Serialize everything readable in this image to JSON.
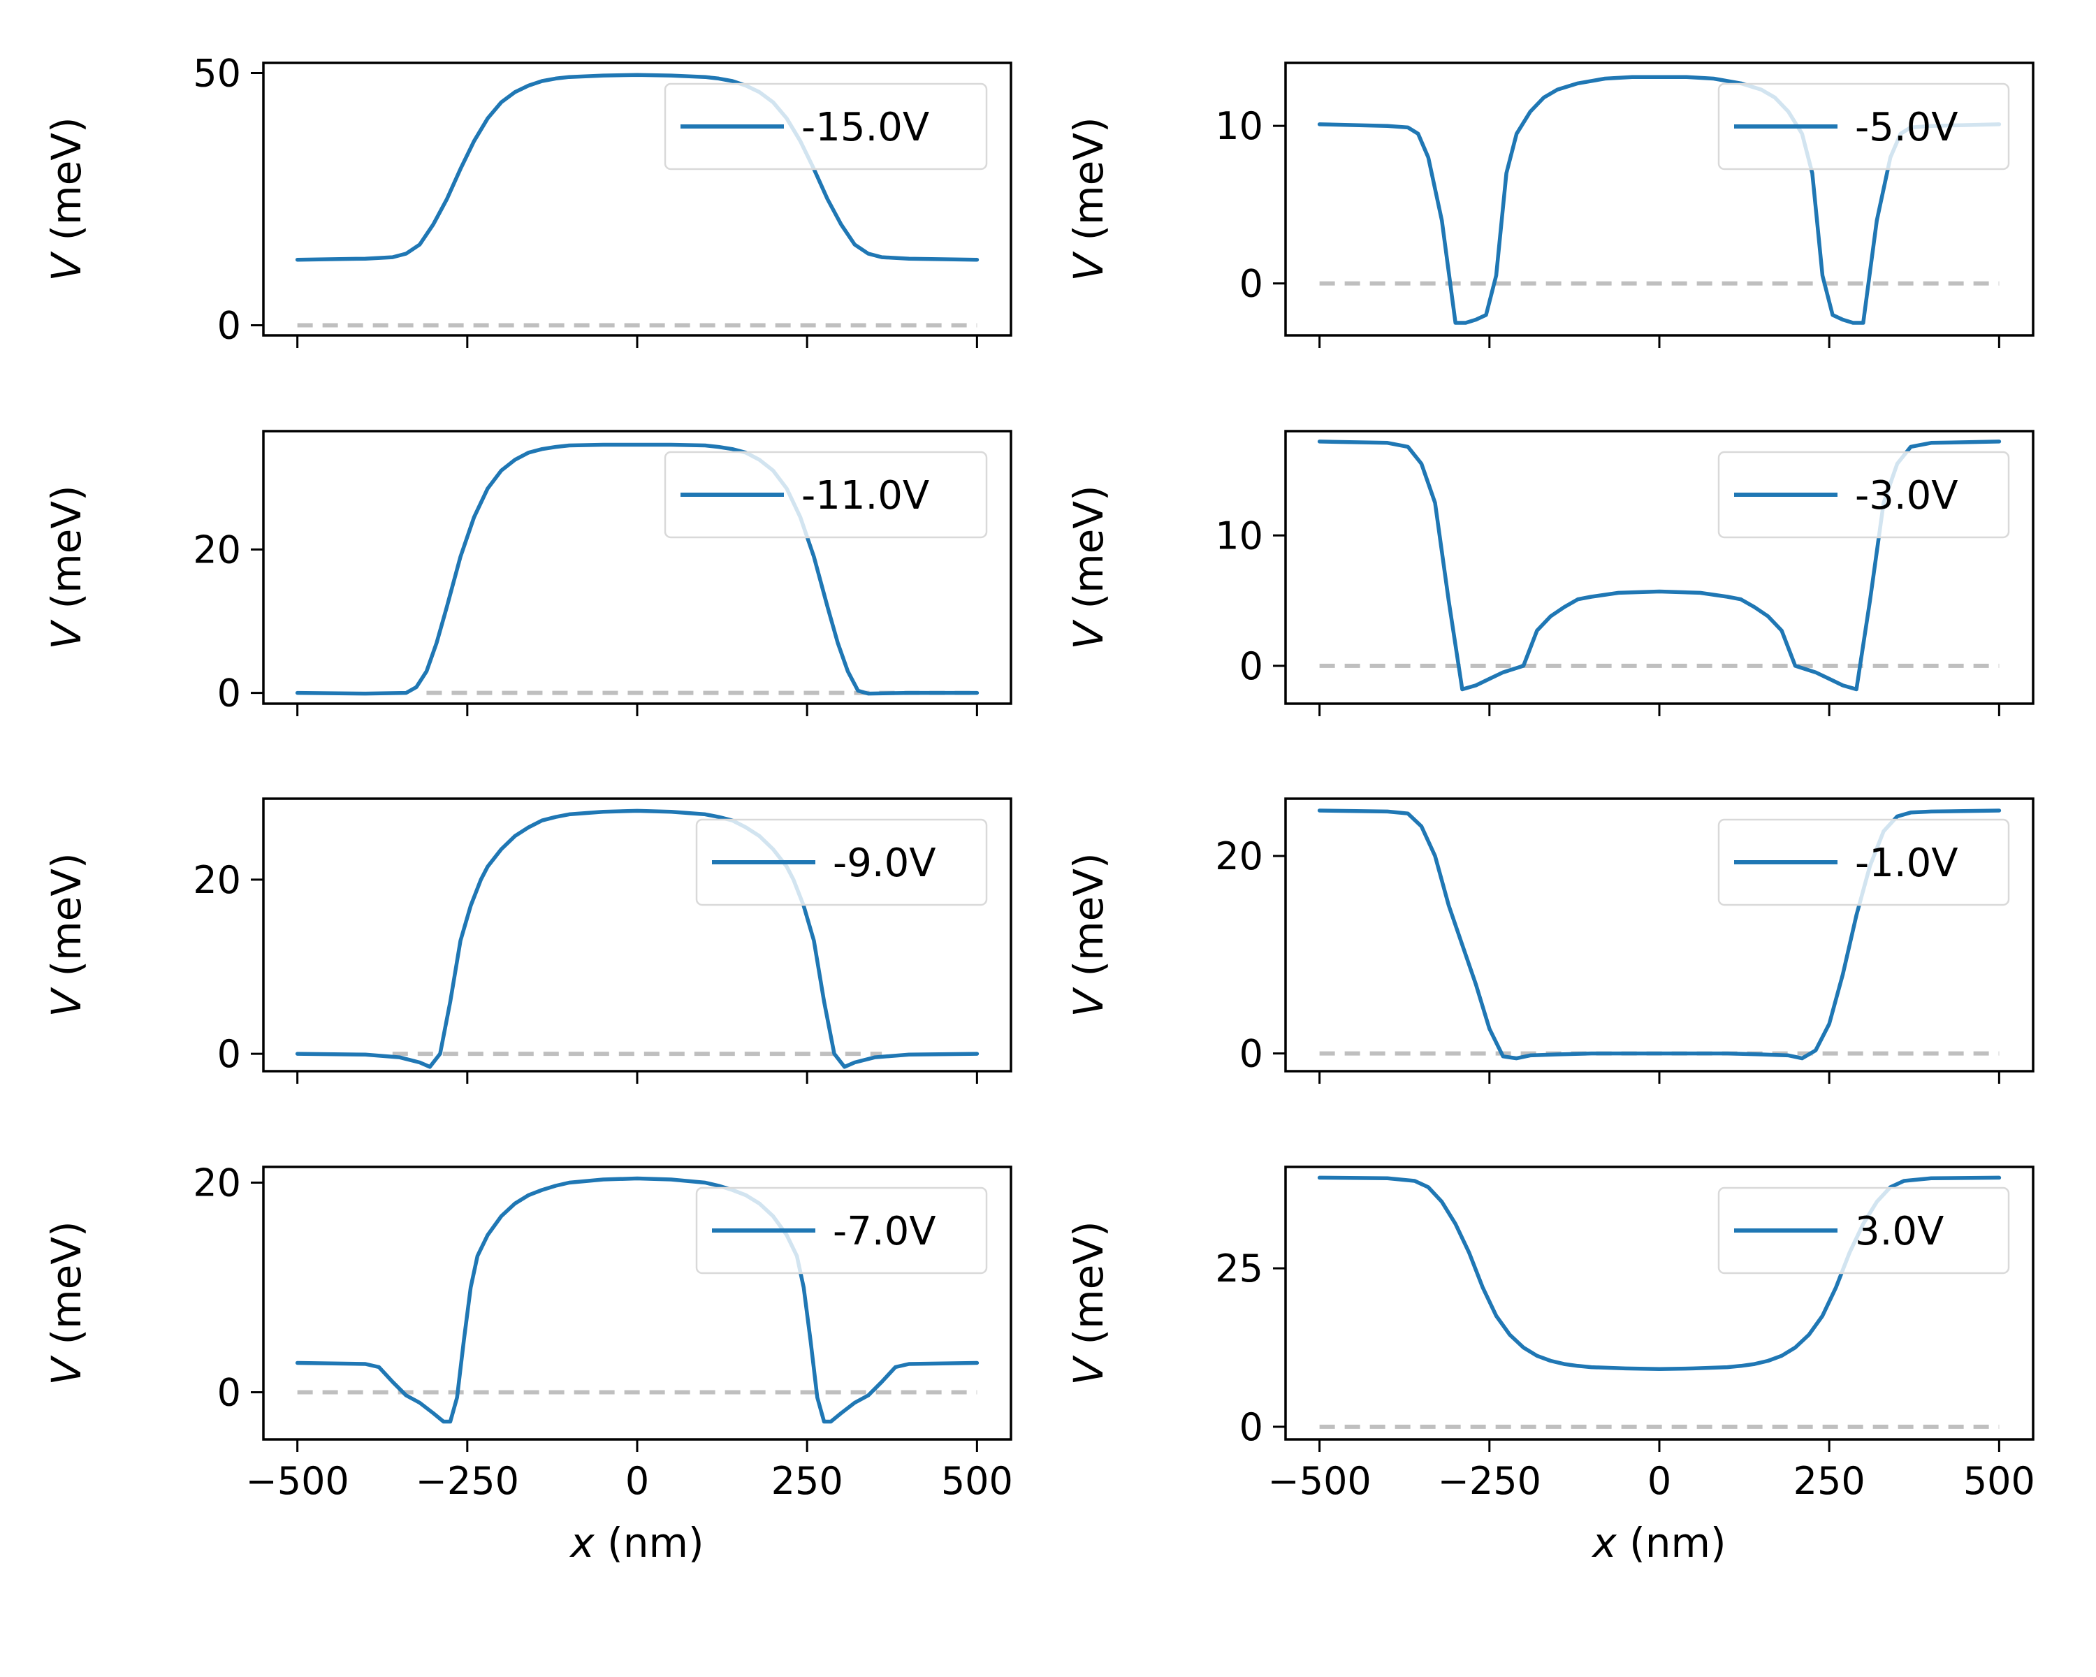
{
  "colors": {
    "series": "#1f77b4",
    "zero_line": "#bfbfbf",
    "axes": "#000000",
    "legend_border": "#d9d9d9"
  },
  "chart_data": [
    {
      "type": "line",
      "legend": "-15.0V",
      "legend_loc": "upper right",
      "ylabel_var": "V",
      "ylabel_unit": "(meV)",
      "xlabel_var": "x",
      "xlabel_unit": "(nm)",
      "xlim": [
        -550,
        550
      ],
      "ylim": [
        -2,
        52
      ],
      "xticks": [
        -500,
        -250,
        0,
        250,
        500
      ],
      "xtick_labels": [
        "−500",
        "−250",
        "0",
        "250",
        "500"
      ],
      "yticks": [
        0,
        50
      ],
      "ytick_labels": [
        "0",
        "50"
      ],
      "show_xtick_labels": false,
      "show_xlabel": false,
      "zero_line": [
        -500,
        500
      ],
      "x": [
        -500,
        -400,
        -360,
        -340,
        -320,
        -300,
        -280,
        -260,
        -240,
        -220,
        -200,
        -180,
        -160,
        -140,
        -120,
        -100,
        -50,
        0,
        50,
        100,
        120,
        140,
        160,
        180,
        200,
        220,
        240,
        260,
        280,
        300,
        320,
        340,
        360,
        400,
        500
      ],
      "y": [
        13,
        13.2,
        13.5,
        14.2,
        16,
        20,
        25,
        31,
        36.5,
        41,
        44.2,
        46.2,
        47.5,
        48.4,
        48.9,
        49.2,
        49.5,
        49.6,
        49.5,
        49.2,
        48.9,
        48.4,
        47.5,
        46.2,
        44.2,
        41,
        36.5,
        31,
        25,
        20,
        16,
        14.2,
        13.5,
        13.2,
        13
      ]
    },
    {
      "type": "line",
      "legend": "-5.0V",
      "legend_loc": "upper right",
      "ylabel_var": "V",
      "ylabel_unit": "(meV)",
      "xlabel_var": "x",
      "xlabel_unit": "(nm)",
      "xlim": [
        -550,
        550
      ],
      "ylim": [
        -3.3,
        14
      ],
      "xticks": [
        -500,
        -250,
        0,
        250,
        500
      ],
      "xtick_labels": [
        "−500",
        "−250",
        "0",
        "250",
        "500"
      ],
      "yticks": [
        0,
        10
      ],
      "ytick_labels": [
        "0",
        "10"
      ],
      "show_xtick_labels": false,
      "show_xlabel": false,
      "zero_line": [
        -500,
        500
      ],
      "x": [
        -500,
        -400,
        -370,
        -355,
        -340,
        -320,
        -300,
        -285,
        -270,
        -255,
        -240,
        -225,
        -210,
        -190,
        -170,
        -150,
        -120,
        -80,
        -40,
        0,
        40,
        80,
        120,
        150,
        170,
        190,
        210,
        225,
        240,
        255,
        270,
        285,
        300,
        320,
        340,
        355,
        370,
        400,
        500
      ],
      "y": [
        10.1,
        10,
        9.9,
        9.5,
        8,
        4,
        -2.5,
        -2.5,
        -2.3,
        -2,
        0.5,
        7,
        9.5,
        10.9,
        11.8,
        12.3,
        12.7,
        13,
        13.1,
        13.1,
        13.1,
        13,
        12.7,
        12.3,
        11.8,
        10.9,
        9.5,
        7,
        0.5,
        -2,
        -2.3,
        -2.5,
        -2.5,
        4,
        8,
        9.5,
        9.9,
        10,
        10.1
      ]
    },
    {
      "type": "line",
      "legend": "-11.0V",
      "legend_loc": "upper right",
      "ylabel_var": "V",
      "ylabel_unit": "(meV)",
      "xlabel_var": "x",
      "xlabel_unit": "(nm)",
      "xlim": [
        -550,
        550
      ],
      "ylim": [
        -1.5,
        36.5
      ],
      "xticks": [
        -500,
        -250,
        0,
        250,
        500
      ],
      "xtick_labels": [
        "−500",
        "−250",
        "0",
        "250",
        "500"
      ],
      "yticks": [
        0,
        20
      ],
      "ytick_labels": [
        "0",
        "20"
      ],
      "show_xtick_labels": false,
      "show_xlabel": false,
      "zero_line": [
        -310,
        500
      ],
      "x": [
        -500,
        -400,
        -340,
        -325,
        -310,
        -295,
        -280,
        -260,
        -240,
        -220,
        -200,
        -180,
        -160,
        -140,
        -120,
        -100,
        -50,
        0,
        50,
        100,
        120,
        140,
        160,
        180,
        200,
        220,
        240,
        260,
        280,
        295,
        310,
        325,
        340,
        400,
        500
      ],
      "y": [
        0,
        -0.1,
        0,
        0.8,
        3,
        7,
        12,
        19,
        24.5,
        28.5,
        31,
        32.5,
        33.5,
        34,
        34.3,
        34.5,
        34.6,
        34.6,
        34.6,
        34.5,
        34.3,
        34,
        33.5,
        32.5,
        31,
        28.5,
        24.5,
        19,
        12,
        7,
        3,
        0.3,
        -0.1,
        0,
        0
      ]
    },
    {
      "type": "line",
      "legend": "-3.0V",
      "legend_loc": "upper right",
      "ylabel_var": "V",
      "ylabel_unit": "(meV)",
      "xlabel_var": "x",
      "xlabel_unit": "(nm)",
      "xlim": [
        -550,
        550
      ],
      "ylim": [
        -2.9,
        18
      ],
      "xticks": [
        -500,
        -250,
        0,
        250,
        500
      ],
      "xtick_labels": [
        "−500",
        "−250",
        "0",
        "250",
        "500"
      ],
      "yticks": [
        0,
        10
      ],
      "ytick_labels": [
        "0",
        "10"
      ],
      "show_xtick_labels": false,
      "show_xlabel": false,
      "zero_line": [
        -500,
        500
      ],
      "x": [
        -500,
        -400,
        -370,
        -350,
        -330,
        -310,
        -290,
        -270,
        -250,
        -230,
        -200,
        -180,
        -160,
        -140,
        -120,
        -100,
        -60,
        0,
        60,
        100,
        120,
        140,
        160,
        180,
        200,
        230,
        250,
        270,
        290,
        310,
        330,
        350,
        370,
        400,
        500
      ],
      "y": [
        17.2,
        17.1,
        16.8,
        15.5,
        12.5,
        5,
        -1.8,
        -1.5,
        -1,
        -0.5,
        0,
        2.7,
        3.8,
        4.5,
        5.1,
        5.3,
        5.6,
        5.7,
        5.6,
        5.3,
        5.1,
        4.5,
        3.8,
        2.7,
        0,
        -0.5,
        -1,
        -1.5,
        -1.8,
        5,
        12.5,
        15.5,
        16.8,
        17.1,
        17.2
      ]
    },
    {
      "type": "line",
      "legend": "-9.0V",
      "legend_loc": "upper right",
      "ylabel_var": "V",
      "ylabel_unit": "(meV)",
      "xlabel_var": "x",
      "xlabel_unit": "(nm)",
      "xlim": [
        -550,
        550
      ],
      "ylim": [
        -2,
        29.3
      ],
      "xticks": [
        -500,
        -250,
        0,
        250,
        500
      ],
      "xtick_labels": [
        "−500",
        "−250",
        "0",
        "250",
        "500"
      ],
      "yticks": [
        0,
        20
      ],
      "ytick_labels": [
        "0",
        "20"
      ],
      "show_xtick_labels": false,
      "show_xlabel": false,
      "zero_line": [
        -360,
        360
      ],
      "x": [
        -500,
        -400,
        -350,
        -320,
        -305,
        -290,
        -275,
        -260,
        -245,
        -230,
        -220,
        -200,
        -180,
        -160,
        -140,
        -120,
        -100,
        -50,
        0,
        50,
        100,
        120,
        140,
        160,
        180,
        200,
        220,
        230,
        245,
        260,
        275,
        290,
        305,
        320,
        350,
        400,
        500
      ],
      "y": [
        0,
        -0.1,
        -0.4,
        -1,
        -1.5,
        0,
        6,
        13,
        17,
        20,
        21.5,
        23.5,
        25,
        26,
        26.8,
        27.2,
        27.5,
        27.8,
        27.9,
        27.8,
        27.5,
        27.2,
        26.8,
        26,
        25,
        23.5,
        21.5,
        20,
        17,
        13,
        6,
        0,
        -1.5,
        -1,
        -0.4,
        -0.1,
        0
      ]
    },
    {
      "type": "line",
      "legend": "-1.0V",
      "legend_loc": "upper right",
      "ylabel_var": "V",
      "ylabel_unit": "(meV)",
      "xlabel_var": "x",
      "xlabel_unit": "(nm)",
      "xlim": [
        -550,
        550
      ],
      "ylim": [
        -1.8,
        25.8
      ],
      "xticks": [
        -500,
        -250,
        0,
        250,
        500
      ],
      "xtick_labels": [
        "−500",
        "−250",
        "0",
        "250",
        "500"
      ],
      "yticks": [
        0,
        20
      ],
      "ytick_labels": [
        "0",
        "20"
      ],
      "show_xtick_labels": false,
      "show_xlabel": false,
      "zero_line": [
        -500,
        500
      ],
      "x": [
        -500,
        -400,
        -370,
        -350,
        -330,
        -310,
        -290,
        -270,
        -250,
        -230,
        -210,
        -190,
        -150,
        -100,
        0,
        100,
        150,
        190,
        210,
        230,
        250,
        270,
        290,
        310,
        330,
        350,
        370,
        400,
        500
      ],
      "y": [
        24.6,
        24.5,
        24.3,
        23,
        20,
        15,
        11,
        7,
        2.5,
        -0.3,
        -0.5,
        -0.2,
        -0.1,
        0,
        0,
        0,
        -0.1,
        -0.2,
        -0.5,
        0.3,
        3,
        8,
        14,
        19,
        22.5,
        24,
        24.4,
        24.5,
        24.6
      ]
    },
    {
      "type": "line",
      "legend": "-7.0V",
      "legend_loc": "upper right",
      "ylabel_var": "V",
      "ylabel_unit": "(meV)",
      "xlabel_var": "x",
      "xlabel_unit": "(nm)",
      "xlim": [
        -550,
        550
      ],
      "ylim": [
        -4.5,
        21.5
      ],
      "xticks": [
        -500,
        -250,
        0,
        250,
        500
      ],
      "xtick_labels": [
        "−500",
        "−250",
        "0",
        "250",
        "500"
      ],
      "yticks": [
        0,
        20
      ],
      "ytick_labels": [
        "0",
        "20"
      ],
      "show_xtick_labels": true,
      "show_xlabel": true,
      "zero_line": [
        -500,
        500
      ],
      "x": [
        -500,
        -400,
        -380,
        -360,
        -340,
        -320,
        -300,
        -285,
        -275,
        -265,
        -255,
        -245,
        -235,
        -220,
        -200,
        -180,
        -160,
        -140,
        -120,
        -100,
        -50,
        0,
        50,
        100,
        120,
        140,
        160,
        180,
        200,
        220,
        235,
        245,
        255,
        265,
        275,
        285,
        300,
        320,
        340,
        360,
        380,
        400,
        500
      ],
      "y": [
        2.8,
        2.7,
        2.4,
        1,
        -0.3,
        -1,
        -2,
        -2.8,
        -2.8,
        -0.5,
        5,
        10,
        13,
        15,
        16.8,
        18,
        18.8,
        19.3,
        19.7,
        20,
        20.3,
        20.4,
        20.3,
        20,
        19.7,
        19.3,
        18.8,
        18,
        16.8,
        15,
        13,
        10,
        5,
        -0.5,
        -2.8,
        -2.8,
        -2,
        -1,
        -0.3,
        1,
        2.4,
        2.7,
        2.8
      ]
    },
    {
      "type": "line",
      "legend": "3.0V",
      "legend_loc": "upper right",
      "ylabel_var": "V",
      "ylabel_unit": "(meV)",
      "xlabel_var": "x",
      "xlabel_unit": "(nm)",
      "xlim": [
        -550,
        550
      ],
      "ylim": [
        -2,
        41
      ],
      "xticks": [
        -500,
        -250,
        0,
        250,
        500
      ],
      "xtick_labels": [
        "−500",
        "−250",
        "0",
        "250",
        "500"
      ],
      "yticks": [
        0,
        25
      ],
      "ytick_labels": [
        "0",
        "25"
      ],
      "show_xtick_labels": true,
      "show_xlabel": true,
      "zero_line": [
        -500,
        500
      ],
      "x": [
        -500,
        -400,
        -360,
        -340,
        -320,
        -300,
        -280,
        -260,
        -240,
        -220,
        -200,
        -180,
        -160,
        -140,
        -120,
        -100,
        -50,
        0,
        50,
        100,
        120,
        140,
        160,
        180,
        200,
        220,
        240,
        260,
        280,
        300,
        320,
        340,
        360,
        400,
        500
      ],
      "y": [
        39.3,
        39.2,
        38.8,
        37.8,
        35.5,
        32,
        27.5,
        22,
        17.5,
        14.5,
        12.5,
        11.2,
        10.4,
        9.9,
        9.6,
        9.4,
        9.2,
        9.1,
        9.2,
        9.4,
        9.6,
        9.9,
        10.4,
        11.2,
        12.5,
        14.5,
        17.5,
        22,
        27.5,
        32,
        35.5,
        37.8,
        38.8,
        39.2,
        39.3
      ]
    }
  ]
}
